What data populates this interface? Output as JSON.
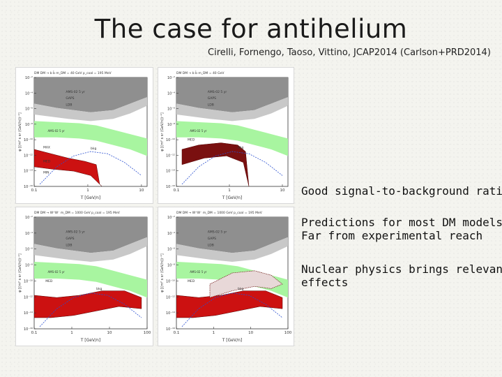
{
  "slide": {
    "title": "The case for antihelium",
    "citation": "Cirelli, Fornengo, Taoso, Vittino, JCAP2014 (Carlson+PRD2014)"
  },
  "bullets": [
    {
      "lines": [
        "Good signal-to-background ratios"
      ]
    },
    {
      "lines": [
        "Predictions for most DM models",
        "Far from experimental reach"
      ]
    },
    {
      "lines": [
        "Nuclear physics brings relevant",
        "effects"
      ]
    }
  ],
  "plots": [
    {
      "header": "DM DM → b b̄   m_DM = 40 GeV   p_coal = 195 MeV",
      "xlabel": "T [GeV/n]",
      "ylabel": "φ [(m² s sr (GeV/n))⁻¹]",
      "x_ticks": [
        "0.1",
        "1",
        "10"
      ],
      "y_ticks": [
        "10⁻²",
        "10⁻⁴",
        "10⁻⁶",
        "10⁻⁸",
        "10⁻¹⁰",
        "10⁻¹²",
        "10⁻¹⁴",
        "10⁻¹⁶"
      ],
      "legend": [
        "AMS-02 5 yr",
        "GAPS",
        "LDB"
      ],
      "curve_labels": [
        "MAX",
        "MED",
        "MIN",
        "bkg"
      ],
      "signal_color": "#cc1111"
    },
    {
      "header": "DM DM → b b̄   m_DM = 40 GeV",
      "xlabel": "T [GeV/n]",
      "ylabel": "φ [(m² s sr (GeV/n))⁻¹]",
      "x_ticks": [
        "0.1",
        "1",
        "10"
      ],
      "y_ticks": [
        "10⁻²",
        "10⁻⁴",
        "10⁻⁶",
        "10⁻⁸",
        "10⁻¹⁰",
        "10⁻¹²",
        "10⁻¹⁴",
        "10⁻¹⁶"
      ],
      "legend": [
        "AMS-02 5 yr",
        "GAPS",
        "LDB"
      ],
      "curve_labels": [
        "MED",
        "bkg"
      ],
      "signal_color": "#7a1010"
    },
    {
      "header": "DM DM → W⁺W⁻   m_DM = 1000 GeV   p_coal = 195 MeV",
      "xlabel": "T [GeV/n]",
      "ylabel": "φ [(m² s sr (GeV/n))⁻¹]",
      "x_ticks": [
        "0.1",
        "1",
        "10",
        "100"
      ],
      "y_ticks": [
        "10⁻²",
        "10⁻⁴",
        "10⁻⁶",
        "10⁻⁸",
        "10⁻¹⁰",
        "10⁻¹²",
        "10⁻¹⁴",
        "10⁻¹⁶"
      ],
      "legend": [
        "AMS-02 5 yr",
        "GAPS",
        "LDB"
      ],
      "curve_labels": [
        "MED",
        "bkg"
      ],
      "signal_color": "#cc1111"
    },
    {
      "header": "DM DM → W⁺W⁻   m_DM = 1000 GeV   p_coal = 195 MeV",
      "xlabel": "T [GeV/n]",
      "ylabel": "φ [(m² s sr (GeV/n))⁻¹]",
      "x_ticks": [
        "0.1",
        "1",
        "10",
        "100"
      ],
      "y_ticks": [
        "10⁻²",
        "10⁻⁴",
        "10⁻⁶",
        "10⁻⁸",
        "10⁻¹⁰",
        "10⁻¹²",
        "10⁻¹⁴",
        "10⁻¹⁶"
      ],
      "legend": [
        "AMS-02 5 yr",
        "GAPS",
        "LDB"
      ],
      "curve_labels": [
        "MED",
        "bkg"
      ],
      "signal_color": "#cc1111"
    }
  ],
  "colors": {
    "dark_grey": "#8f8f8f",
    "light_grey": "#c8c8c8",
    "green": "#a8f5a0",
    "background_curve": "#2a4fd0"
  }
}
